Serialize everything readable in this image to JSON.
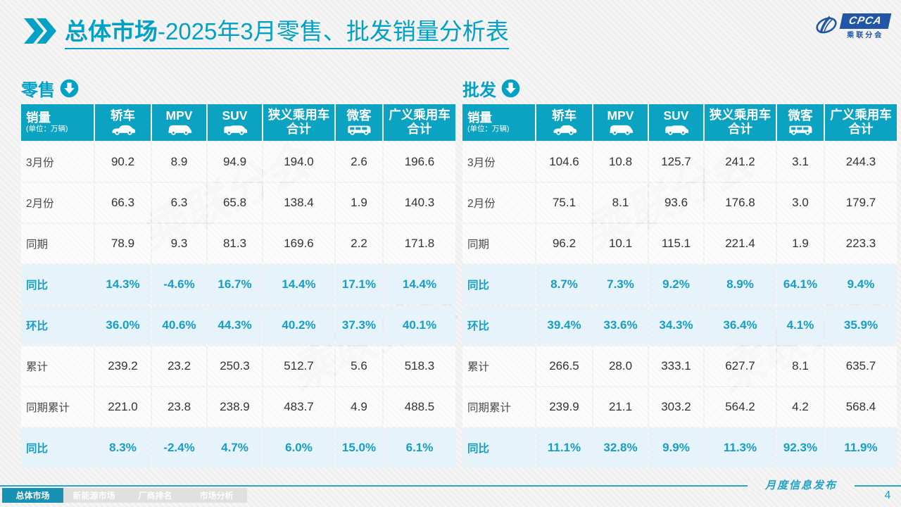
{
  "header": {
    "title_primary": "总体市场",
    "title_secondary": "-2025年3月零售、批发销量分析表"
  },
  "logo": {
    "acronym": "CPCA",
    "name": "乘联分会"
  },
  "watermark_text": "乘联分会",
  "columns": [
    {
      "key": "sales",
      "label": "销量",
      "sublabel": "(单位：万辆)"
    },
    {
      "key": "sedan",
      "label": "轿车",
      "icon": "sedan-car-icon"
    },
    {
      "key": "mpv",
      "label": "MPV",
      "icon": "mpv-car-icon"
    },
    {
      "key": "suv",
      "label": "SUV",
      "icon": "suv-car-icon"
    },
    {
      "key": "narrow-pv-total",
      "label": "狭义乘用车",
      "label2": "合计"
    },
    {
      "key": "minibus",
      "label": "微客",
      "icon": "minibus-icon"
    },
    {
      "key": "broad-pv-total",
      "label": "广义乘用车",
      "label2": "合计"
    }
  ],
  "tables": [
    {
      "key": "retail",
      "label": "零售",
      "rows": [
        {
          "label": "3月份",
          "highlight": false,
          "values": [
            "90.2",
            "8.9",
            "94.9",
            "194.0",
            "2.6",
            "196.6"
          ]
        },
        {
          "label": "2月份",
          "highlight": false,
          "values": [
            "66.3",
            "6.3",
            "65.8",
            "138.4",
            "1.9",
            "140.3"
          ]
        },
        {
          "label": "同期",
          "highlight": false,
          "values": [
            "78.9",
            "9.3",
            "81.3",
            "169.6",
            "2.2",
            "171.8"
          ]
        },
        {
          "label": "同比",
          "highlight": true,
          "values": [
            "14.3%",
            "-4.6%",
            "16.7%",
            "14.4%",
            "17.1%",
            "14.4%"
          ]
        },
        {
          "label": "环比",
          "highlight": true,
          "values": [
            "36.0%",
            "40.6%",
            "44.3%",
            "40.2%",
            "37.3%",
            "40.1%"
          ]
        },
        {
          "label": "累计",
          "highlight": false,
          "values": [
            "239.2",
            "23.2",
            "250.3",
            "512.7",
            "5.6",
            "518.3"
          ]
        },
        {
          "label": "同期累计",
          "highlight": false,
          "values": [
            "221.0",
            "23.8",
            "238.9",
            "483.7",
            "4.9",
            "488.5"
          ]
        },
        {
          "label": "同比",
          "highlight": true,
          "values": [
            "8.3%",
            "-2.4%",
            "4.7%",
            "6.0%",
            "15.0%",
            "6.1%"
          ]
        }
      ]
    },
    {
      "key": "wholesale",
      "label": "批发",
      "rows": [
        {
          "label": "3月份",
          "highlight": false,
          "values": [
            "104.6",
            "10.8",
            "125.7",
            "241.2",
            "3.1",
            "244.3"
          ]
        },
        {
          "label": "2月份",
          "highlight": false,
          "values": [
            "75.1",
            "8.1",
            "93.6",
            "176.8",
            "3.0",
            "179.7"
          ]
        },
        {
          "label": "同期",
          "highlight": false,
          "values": [
            "96.2",
            "10.1",
            "115.1",
            "221.4",
            "1.9",
            "223.3"
          ]
        },
        {
          "label": "同比",
          "highlight": true,
          "values": [
            "8.7%",
            "7.3%",
            "9.2%",
            "8.9%",
            "64.1%",
            "9.4%"
          ]
        },
        {
          "label": "环比",
          "highlight": true,
          "values": [
            "39.4%",
            "33.6%",
            "34.3%",
            "36.4%",
            "4.1%",
            "35.9%"
          ]
        },
        {
          "label": "累计",
          "highlight": false,
          "values": [
            "266.5",
            "28.0",
            "333.1",
            "627.7",
            "8.1",
            "635.7"
          ]
        },
        {
          "label": "同期累计",
          "highlight": false,
          "values": [
            "239.9",
            "21.1",
            "303.2",
            "564.2",
            "4.2",
            "568.4"
          ]
        },
        {
          "label": "同比",
          "highlight": true,
          "values": [
            "11.1%",
            "32.8%",
            "9.9%",
            "11.3%",
            "92.3%",
            "11.9%"
          ]
        }
      ]
    }
  ],
  "footer": {
    "tabs": [
      {
        "key": "overall-market",
        "label": "总体市场",
        "active": true
      },
      {
        "key": "nev-market",
        "label": "新能源市场",
        "active": false
      },
      {
        "key": "oem-ranking",
        "label": "厂商排名",
        "active": false
      },
      {
        "key": "market-analysis",
        "label": "市场分析",
        "active": false
      }
    ],
    "brand": "月度信息发布",
    "page_number": "4"
  },
  "colors": {
    "teal": "#00A1C5",
    "header_bg": "#0CA2C2",
    "highlight_bg": "#E7F3FA",
    "highlight_text": "#179EC6",
    "active_tab_bg": "#1792B2",
    "logo_blue": "#2156A5"
  }
}
